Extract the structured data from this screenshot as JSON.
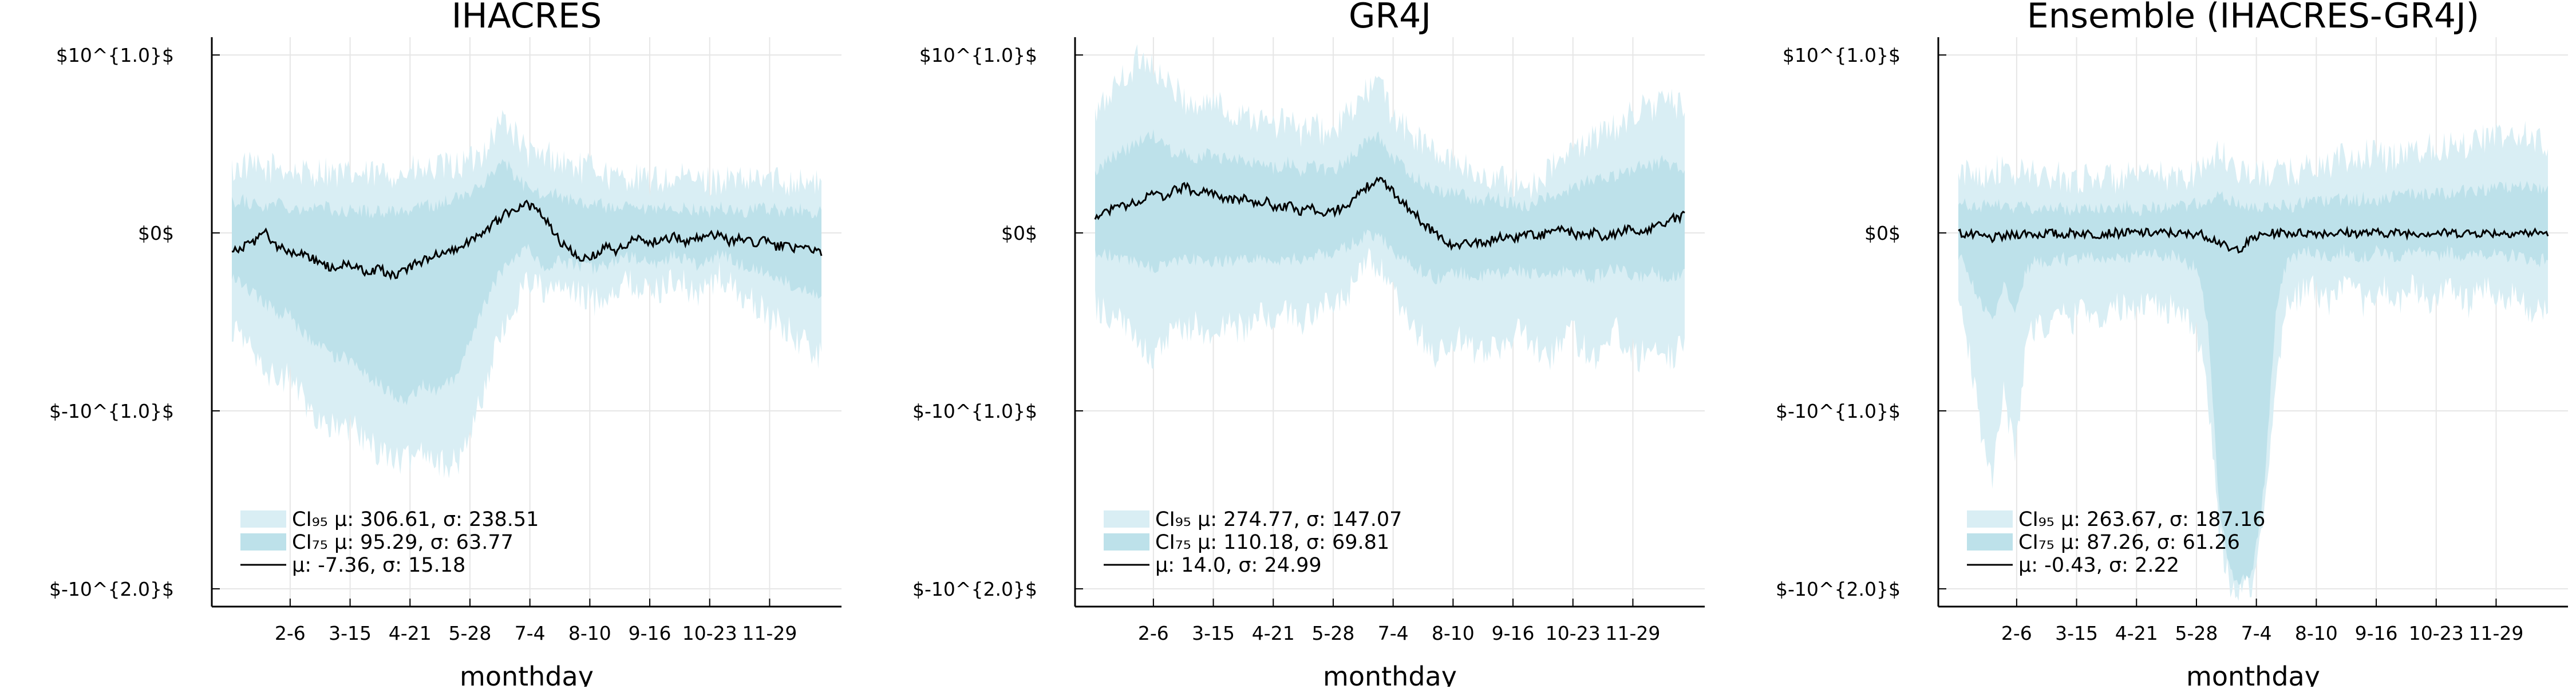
{
  "chart_data": [
    {
      "type": "area",
      "title": "IHACRES",
      "xlabel": "monthday",
      "ylabel": "",
      "x_ticks": [
        "2-6",
        "3-15",
        "4-21",
        "5-28",
        "7-4",
        "8-10",
        "9-16",
        "10-23",
        "11-29"
      ],
      "y_ticks": [
        "$10^{1.0}$",
        "$0$",
        "$-10^{1.0}$",
        "$-10^{2.0}$"
      ],
      "y_tick_values": [
        1,
        0,
        -1,
        -2
      ],
      "ylim": [
        -2.1,
        1.1
      ],
      "grid": true,
      "legend_position": "bottom-left",
      "x_knots": [
        1,
        8,
        15,
        22,
        29,
        36,
        43,
        50,
        57,
        64,
        71,
        78,
        85,
        92,
        99,
        106,
        113,
        120,
        127,
        134,
        141,
        148,
        155,
        162,
        169,
        176,
        183,
        190,
        197,
        204,
        211,
        218,
        225,
        232,
        239,
        246,
        253,
        260,
        267,
        274,
        281,
        288,
        295,
        302,
        309,
        316,
        323,
        330,
        337,
        344,
        351,
        358,
        365
      ],
      "series": [
        {
          "name": "CI95",
          "legend": "CI₉₅ μ: 306.61, σ: 238.51",
          "upper": [
            0.35,
            0.38,
            0.36,
            0.35,
            0.38,
            0.35,
            0.34,
            0.33,
            0.36,
            0.33,
            0.32,
            0.33,
            0.32,
            0.33,
            0.34,
            0.33,
            0.35,
            0.34,
            0.36,
            0.37,
            0.38,
            0.4,
            0.45,
            0.55,
            0.65,
            0.55,
            0.45,
            0.42,
            0.44,
            0.4,
            0.38,
            0.36,
            0.38,
            0.33,
            0.3,
            0.32,
            0.3,
            0.29,
            0.3,
            0.29,
            0.31,
            0.3,
            0.29,
            0.3,
            0.3,
            0.28,
            0.29,
            0.31,
            0.3,
            0.29,
            0.3,
            0.28,
            0.27
          ],
          "lower": [
            -0.55,
            -0.6,
            -0.65,
            -0.75,
            -0.85,
            -0.8,
            -0.9,
            -1.0,
            -1.05,
            -1.1,
            -1.1,
            -1.1,
            -1.2,
            -1.22,
            -1.25,
            -1.3,
            -1.25,
            -1.2,
            -1.28,
            -1.3,
            -1.3,
            -1.1,
            -0.95,
            -0.7,
            -0.55,
            -0.4,
            -0.25,
            -0.3,
            -0.35,
            -0.3,
            -0.35,
            -0.35,
            -0.38,
            -0.35,
            -0.3,
            -0.28,
            -0.3,
            -0.35,
            -0.3,
            -0.25,
            -0.3,
            -0.35,
            -0.3,
            -0.25,
            -0.3,
            -0.35,
            -0.4,
            -0.45,
            -0.5,
            -0.55,
            -0.6,
            -0.65,
            -0.7
          ]
        },
        {
          "name": "CI75",
          "legend": "CI₇₅ μ: 95.29, σ: 63.77",
          "upper": [
            0.18,
            0.18,
            0.16,
            0.15,
            0.17,
            0.15,
            0.14,
            0.14,
            0.15,
            0.13,
            0.12,
            0.13,
            0.12,
            0.12,
            0.13,
            0.12,
            0.14,
            0.15,
            0.16,
            0.18,
            0.2,
            0.22,
            0.27,
            0.35,
            0.4,
            0.32,
            0.25,
            0.22,
            0.24,
            0.2,
            0.18,
            0.16,
            0.18,
            0.14,
            0.13,
            0.14,
            0.13,
            0.12,
            0.14,
            0.13,
            0.14,
            0.13,
            0.12,
            0.14,
            0.13,
            0.12,
            0.13,
            0.14,
            0.13,
            0.12,
            0.13,
            0.12,
            0.11
          ],
          "lower": [
            -0.25,
            -0.3,
            -0.35,
            -0.4,
            -0.45,
            -0.45,
            -0.55,
            -0.6,
            -0.65,
            -0.7,
            -0.7,
            -0.75,
            -0.8,
            -0.85,
            -0.9,
            -0.95,
            -0.9,
            -0.85,
            -0.9,
            -0.85,
            -0.8,
            -0.6,
            -0.45,
            -0.3,
            -0.2,
            -0.12,
            -0.08,
            -0.15,
            -0.2,
            -0.15,
            -0.18,
            -0.18,
            -0.2,
            -0.18,
            -0.15,
            -0.14,
            -0.15,
            -0.18,
            -0.16,
            -0.12,
            -0.15,
            -0.18,
            -0.16,
            -0.12,
            -0.15,
            -0.18,
            -0.2,
            -0.22,
            -0.25,
            -0.28,
            -0.3,
            -0.32,
            -0.35
          ]
        },
        {
          "name": "mean",
          "legend": " μ: -7.36, σ: 15.18",
          "values": [
            -0.1,
            -0.08,
            -0.05,
            0.0,
            -0.08,
            -0.1,
            -0.12,
            -0.14,
            -0.18,
            -0.2,
            -0.18,
            -0.2,
            -0.22,
            -0.2,
            -0.24,
            -0.22,
            -0.18,
            -0.15,
            -0.12,
            -0.1,
            -0.08,
            -0.05,
            0.0,
            0.05,
            0.1,
            0.14,
            0.16,
            0.12,
            0.05,
            -0.05,
            -0.1,
            -0.15,
            -0.12,
            -0.08,
            -0.1,
            -0.05,
            -0.03,
            -0.05,
            -0.04,
            -0.02,
            -0.05,
            -0.03,
            0.0,
            -0.02,
            -0.05,
            -0.03,
            -0.06,
            -0.04,
            -0.08,
            -0.06,
            -0.1,
            -0.08,
            -0.12
          ]
        }
      ]
    },
    {
      "type": "area",
      "title": "GR4J",
      "xlabel": "monthday",
      "ylabel": "",
      "x_ticks": [
        "2-6",
        "3-15",
        "4-21",
        "5-28",
        "7-4",
        "8-10",
        "9-16",
        "10-23",
        "11-29"
      ],
      "y_ticks": [
        "$10^{1.0}$",
        "$0$",
        "$-10^{1.0}$",
        "$-10^{2.0}$"
      ],
      "y_tick_values": [
        1,
        0,
        -1,
        -2
      ],
      "ylim": [
        -2.1,
        1.1
      ],
      "grid": true,
      "legend_position": "bottom-left",
      "x_knots": [
        1,
        8,
        15,
        22,
        29,
        36,
        43,
        50,
        57,
        64,
        71,
        78,
        85,
        92,
        99,
        106,
        113,
        120,
        127,
        134,
        141,
        148,
        155,
        162,
        169,
        176,
        183,
        190,
        197,
        204,
        211,
        218,
        225,
        232,
        239,
        246,
        253,
        260,
        267,
        274,
        281,
        288,
        295,
        302,
        309,
        316,
        323,
        330,
        337,
        344,
        351,
        358,
        365
      ],
      "series": [
        {
          "name": "CI95",
          "legend": "CI₉₅ μ: 274.77, σ: 147.07",
          "upper": [
            0.65,
            0.75,
            0.85,
            0.9,
            1.0,
            0.95,
            0.85,
            0.8,
            0.75,
            0.7,
            0.75,
            0.72,
            0.65,
            0.7,
            0.65,
            0.62,
            0.6,
            0.65,
            0.55,
            0.6,
            0.58,
            0.55,
            0.65,
            0.7,
            0.8,
            0.85,
            0.7,
            0.6,
            0.55,
            0.5,
            0.45,
            0.4,
            0.42,
            0.35,
            0.3,
            0.32,
            0.3,
            0.28,
            0.25,
            0.3,
            0.35,
            0.4,
            0.45,
            0.5,
            0.55,
            0.55,
            0.6,
            0.65,
            0.7,
            0.7,
            0.75,
            0.72,
            0.7
          ],
          "lower": [
            -0.4,
            -0.45,
            -0.5,
            -0.55,
            -0.6,
            -0.7,
            -0.65,
            -0.55,
            -0.55,
            -0.5,
            -0.6,
            -0.55,
            -0.5,
            -0.55,
            -0.5,
            -0.45,
            -0.5,
            -0.45,
            -0.5,
            -0.45,
            -0.4,
            -0.45,
            -0.35,
            -0.3,
            -0.15,
            -0.2,
            -0.3,
            -0.45,
            -0.55,
            -0.6,
            -0.7,
            -0.65,
            -0.6,
            -0.65,
            -0.7,
            -0.6,
            -0.65,
            -0.55,
            -0.6,
            -0.65,
            -0.7,
            -0.6,
            -0.55,
            -0.65,
            -0.7,
            -0.6,
            -0.55,
            -0.65,
            -0.7,
            -0.6,
            -0.65,
            -0.7,
            -0.6
          ]
        },
        {
          "name": "CI75",
          "legend": "CI₇₅ μ: 110.18, σ: 69.81",
          "upper": [
            0.35,
            0.4,
            0.45,
            0.48,
            0.52,
            0.55,
            0.5,
            0.45,
            0.45,
            0.42,
            0.45,
            0.43,
            0.4,
            0.42,
            0.4,
            0.38,
            0.36,
            0.4,
            0.35,
            0.38,
            0.36,
            0.35,
            0.4,
            0.45,
            0.52,
            0.55,
            0.45,
            0.38,
            0.32,
            0.28,
            0.25,
            0.22,
            0.24,
            0.2,
            0.18,
            0.2,
            0.18,
            0.16,
            0.15,
            0.18,
            0.2,
            0.22,
            0.25,
            0.28,
            0.3,
            0.3,
            0.32,
            0.35,
            0.38,
            0.38,
            0.4,
            0.38,
            0.36
          ],
          "lower": [
            -0.12,
            -0.12,
            -0.14,
            -0.15,
            -0.18,
            -0.2,
            -0.18,
            -0.16,
            -0.16,
            -0.15,
            -0.18,
            -0.16,
            -0.15,
            -0.16,
            -0.15,
            -0.14,
            -0.15,
            -0.14,
            -0.15,
            -0.14,
            -0.12,
            -0.12,
            -0.08,
            -0.05,
            0.0,
            -0.02,
            -0.08,
            -0.14,
            -0.18,
            -0.22,
            -0.25,
            -0.24,
            -0.22,
            -0.24,
            -0.25,
            -0.22,
            -0.24,
            -0.2,
            -0.22,
            -0.24,
            -0.25,
            -0.22,
            -0.2,
            -0.24,
            -0.25,
            -0.22,
            -0.2,
            -0.24,
            -0.25,
            -0.22,
            -0.24,
            -0.25,
            -0.22
          ]
        },
        {
          "name": "mean",
          "legend": " μ: 14.0, σ: 24.99",
          "values": [
            0.1,
            0.12,
            0.15,
            0.16,
            0.18,
            0.22,
            0.2,
            0.24,
            0.26,
            0.22,
            0.24,
            0.2,
            0.18,
            0.2,
            0.16,
            0.18,
            0.14,
            0.16,
            0.12,
            0.15,
            0.1,
            0.12,
            0.15,
            0.2,
            0.26,
            0.3,
            0.25,
            0.18,
            0.12,
            0.05,
            0.0,
            -0.05,
            -0.08,
            -0.05,
            -0.06,
            -0.04,
            -0.02,
            -0.03,
            0.0,
            -0.02,
            0.0,
            0.02,
            0.0,
            -0.02,
            0.0,
            -0.03,
            0.0,
            0.02,
            0.0,
            0.03,
            0.05,
            0.08,
            0.1
          ]
        }
      ]
    },
    {
      "type": "area",
      "title": "Ensemble (IHACRES-GR4J)",
      "xlabel": "monthday",
      "ylabel": "",
      "x_ticks": [
        "2-6",
        "3-15",
        "4-21",
        "5-28",
        "7-4",
        "8-10",
        "9-16",
        "10-23",
        "11-29"
      ],
      "y_ticks": [
        "$10^{1.0}$",
        "$0$",
        "$-10^{1.0}$",
        "$-10^{2.0}$"
      ],
      "y_tick_values": [
        1,
        0,
        -1,
        -2
      ],
      "ylim": [
        -2.1,
        1.1
      ],
      "grid": true,
      "legend_position": "bottom-left",
      "x_knots": [
        1,
        8,
        15,
        22,
        29,
        36,
        43,
        50,
        57,
        64,
        71,
        78,
        85,
        92,
        99,
        106,
        113,
        120,
        127,
        134,
        141,
        148,
        155,
        162,
        169,
        176,
        183,
        190,
        197,
        204,
        211,
        218,
        225,
        232,
        239,
        246,
        253,
        260,
        267,
        274,
        281,
        288,
        295,
        302,
        309,
        316,
        323,
        330,
        337,
        344,
        351,
        358,
        365
      ],
      "series": [
        {
          "name": "CI95",
          "legend": "CI₉₅ μ: 263.67, σ: 187.16",
          "upper": [
            0.3,
            0.35,
            0.33,
            0.36,
            0.34,
            0.32,
            0.35,
            0.33,
            0.3,
            0.32,
            0.31,
            0.3,
            0.33,
            0.31,
            0.3,
            0.32,
            0.3,
            0.31,
            0.33,
            0.3,
            0.32,
            0.35,
            0.4,
            0.45,
            0.4,
            0.35,
            0.33,
            0.32,
            0.35,
            0.33,
            0.35,
            0.38,
            0.36,
            0.4,
            0.42,
            0.4,
            0.45,
            0.43,
            0.42,
            0.45,
            0.48,
            0.46,
            0.5,
            0.48,
            0.52,
            0.5,
            0.55,
            0.52,
            0.55,
            0.53,
            0.55,
            0.52,
            0.5
          ],
          "lower": [
            -0.4,
            -0.7,
            -1.1,
            -1.35,
            -0.9,
            -1.25,
            -0.6,
            -0.5,
            -0.55,
            -0.45,
            -0.5,
            -0.4,
            -0.45,
            -0.5,
            -0.4,
            -0.45,
            -0.4,
            -0.35,
            -0.45,
            -0.4,
            -0.5,
            -0.55,
            -0.9,
            -1.7,
            -1.98,
            -2.0,
            -1.95,
            -1.6,
            -0.8,
            -0.4,
            -0.35,
            -0.3,
            -0.35,
            -0.4,
            -0.3,
            -0.35,
            -0.4,
            -0.3,
            -0.35,
            -0.4,
            -0.3,
            -0.35,
            -0.4,
            -0.3,
            -0.35,
            -0.4,
            -0.3,
            -0.35,
            -0.4,
            -0.35,
            -0.4,
            -0.45,
            -0.4
          ]
        },
        {
          "name": "CI75",
          "legend": "CI₇₅ μ: 87.26, σ: 61.26",
          "upper": [
            0.15,
            0.16,
            0.15,
            0.16,
            0.15,
            0.14,
            0.15,
            0.14,
            0.13,
            0.14,
            0.13,
            0.14,
            0.15,
            0.13,
            0.14,
            0.15,
            0.13,
            0.14,
            0.15,
            0.14,
            0.15,
            0.16,
            0.18,
            0.2,
            0.18,
            0.16,
            0.15,
            0.14,
            0.16,
            0.15,
            0.16,
            0.18,
            0.17,
            0.18,
            0.19,
            0.18,
            0.2,
            0.19,
            0.2,
            0.21,
            0.22,
            0.21,
            0.23,
            0.22,
            0.24,
            0.23,
            0.25,
            0.24,
            0.26,
            0.25,
            0.26,
            0.25,
            0.24
          ],
          "lower": [
            -0.12,
            -0.25,
            -0.4,
            -0.5,
            -0.3,
            -0.45,
            -0.2,
            -0.15,
            -0.18,
            -0.14,
            -0.16,
            -0.12,
            -0.14,
            -0.16,
            -0.12,
            -0.14,
            -0.12,
            -0.1,
            -0.14,
            -0.12,
            -0.16,
            -0.2,
            -0.5,
            -1.55,
            -1.92,
            -1.95,
            -1.9,
            -1.4,
            -0.45,
            -0.15,
            -0.12,
            -0.1,
            -0.12,
            -0.14,
            -0.1,
            -0.12,
            -0.14,
            -0.1,
            -0.12,
            -0.14,
            -0.1,
            -0.12,
            -0.14,
            -0.1,
            -0.12,
            -0.14,
            -0.1,
            -0.12,
            -0.14,
            -0.12,
            -0.14,
            -0.16,
            -0.14
          ]
        },
        {
          "name": "mean",
          "legend": " μ: -0.43, σ: 2.22",
          "values": [
            0.0,
            -0.01,
            -0.02,
            -0.03,
            -0.02,
            -0.01,
            0.0,
            -0.01,
            0.0,
            -0.01,
            0.0,
            0.0,
            -0.01,
            0.0,
            0.0,
            0.0,
            0.0,
            0.0,
            0.0,
            0.0,
            -0.01,
            0.0,
            -0.02,
            -0.05,
            -0.1,
            -0.08,
            -0.03,
            -0.01,
            0.0,
            0.0,
            0.0,
            0.0,
            0.0,
            0.0,
            0.0,
            0.0,
            0.0,
            0.0,
            0.0,
            0.0,
            0.0,
            0.0,
            0.0,
            0.0,
            0.0,
            0.0,
            0.0,
            0.0,
            0.0,
            0.0,
            0.0,
            0.0,
            0.0
          ]
        }
      ]
    }
  ],
  "tick_day_positions": [
    37,
    74,
    111,
    148,
    185,
    222,
    259,
    296,
    333
  ],
  "colors": {
    "ci95": "#d9eef4",
    "ci75": "#bde1ea",
    "mean": "#000000",
    "axis": "#000000",
    "grid": "#e6e6e6"
  }
}
